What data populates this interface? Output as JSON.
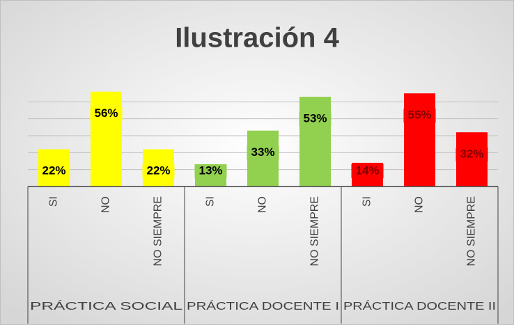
{
  "chart_data": {
    "type": "bar",
    "title": "Ilustración 4",
    "groups": [
      {
        "name": "PRÁCTICA SOCIAL",
        "color": "#ffff00",
        "label_color": "#000000",
        "categories": [
          "SI",
          "NO",
          "NO SIEMPRE"
        ],
        "values": [
          22,
          56,
          22
        ],
        "value_labels": [
          "22%",
          "56%",
          "22%"
        ]
      },
      {
        "name": "PRÁCTICA DOCENTE I",
        "color": "#92d050",
        "label_color": "#000000",
        "categories": [
          "SI",
          "NO",
          "NO SIEMPRE"
        ],
        "values": [
          13,
          33,
          53
        ],
        "value_labels": [
          "13%",
          "33%",
          "53%"
        ]
      },
      {
        "name": "PRÁCTICA DOCENTE II",
        "color": "#ff0000",
        "label_color": "#7f0000",
        "categories": [
          "SI",
          "NO",
          "NO SIEMPRE"
        ],
        "values": [
          14,
          55,
          32
        ],
        "value_labels": [
          "14%",
          "55%",
          "32%"
        ]
      }
    ],
    "ylim": [
      0,
      60
    ],
    "yticks": [
      0,
      10,
      20,
      30,
      40,
      50
    ],
    "grid": true
  }
}
